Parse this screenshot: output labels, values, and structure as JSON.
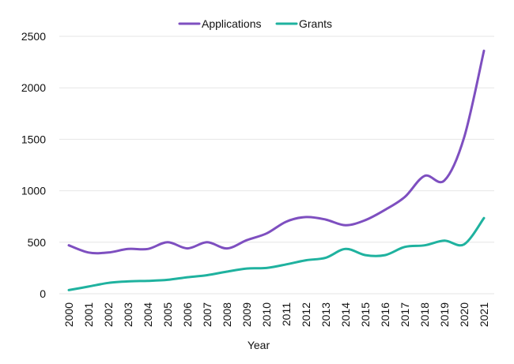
{
  "chart_data": {
    "type": "line",
    "title": "",
    "xlabel": "Year",
    "ylabel": "",
    "categories": [
      "2000",
      "2001",
      "2002",
      "2003",
      "2004",
      "2005",
      "2006",
      "2007",
      "2008",
      "2009",
      "2010",
      "2011",
      "2012",
      "2013",
      "2014",
      "2015",
      "2016",
      "2017",
      "2018",
      "2019",
      "2020",
      "2021"
    ],
    "ylim": [
      0,
      2500
    ],
    "yticks": [
      0,
      500,
      1000,
      1500,
      2000,
      2500
    ],
    "yticks_labels": [
      "0",
      "500",
      "1000",
      "1500",
      "2000",
      "2500"
    ],
    "grid": true,
    "legend_position": "top-center",
    "series": [
      {
        "name": "Applications",
        "color": "#7e4fc0",
        "values": [
          470,
          400,
          400,
          435,
          435,
          500,
          440,
          500,
          440,
          520,
          585,
          700,
          745,
          720,
          665,
          715,
          815,
          940,
          1145,
          1100,
          1520,
          2360
        ]
      },
      {
        "name": "Grants",
        "color": "#1fb29f",
        "values": [
          35,
          70,
          105,
          120,
          125,
          135,
          160,
          180,
          215,
          245,
          250,
          285,
          325,
          350,
          435,
          375,
          375,
          455,
          470,
          515,
          480,
          735
        ]
      }
    ]
  }
}
